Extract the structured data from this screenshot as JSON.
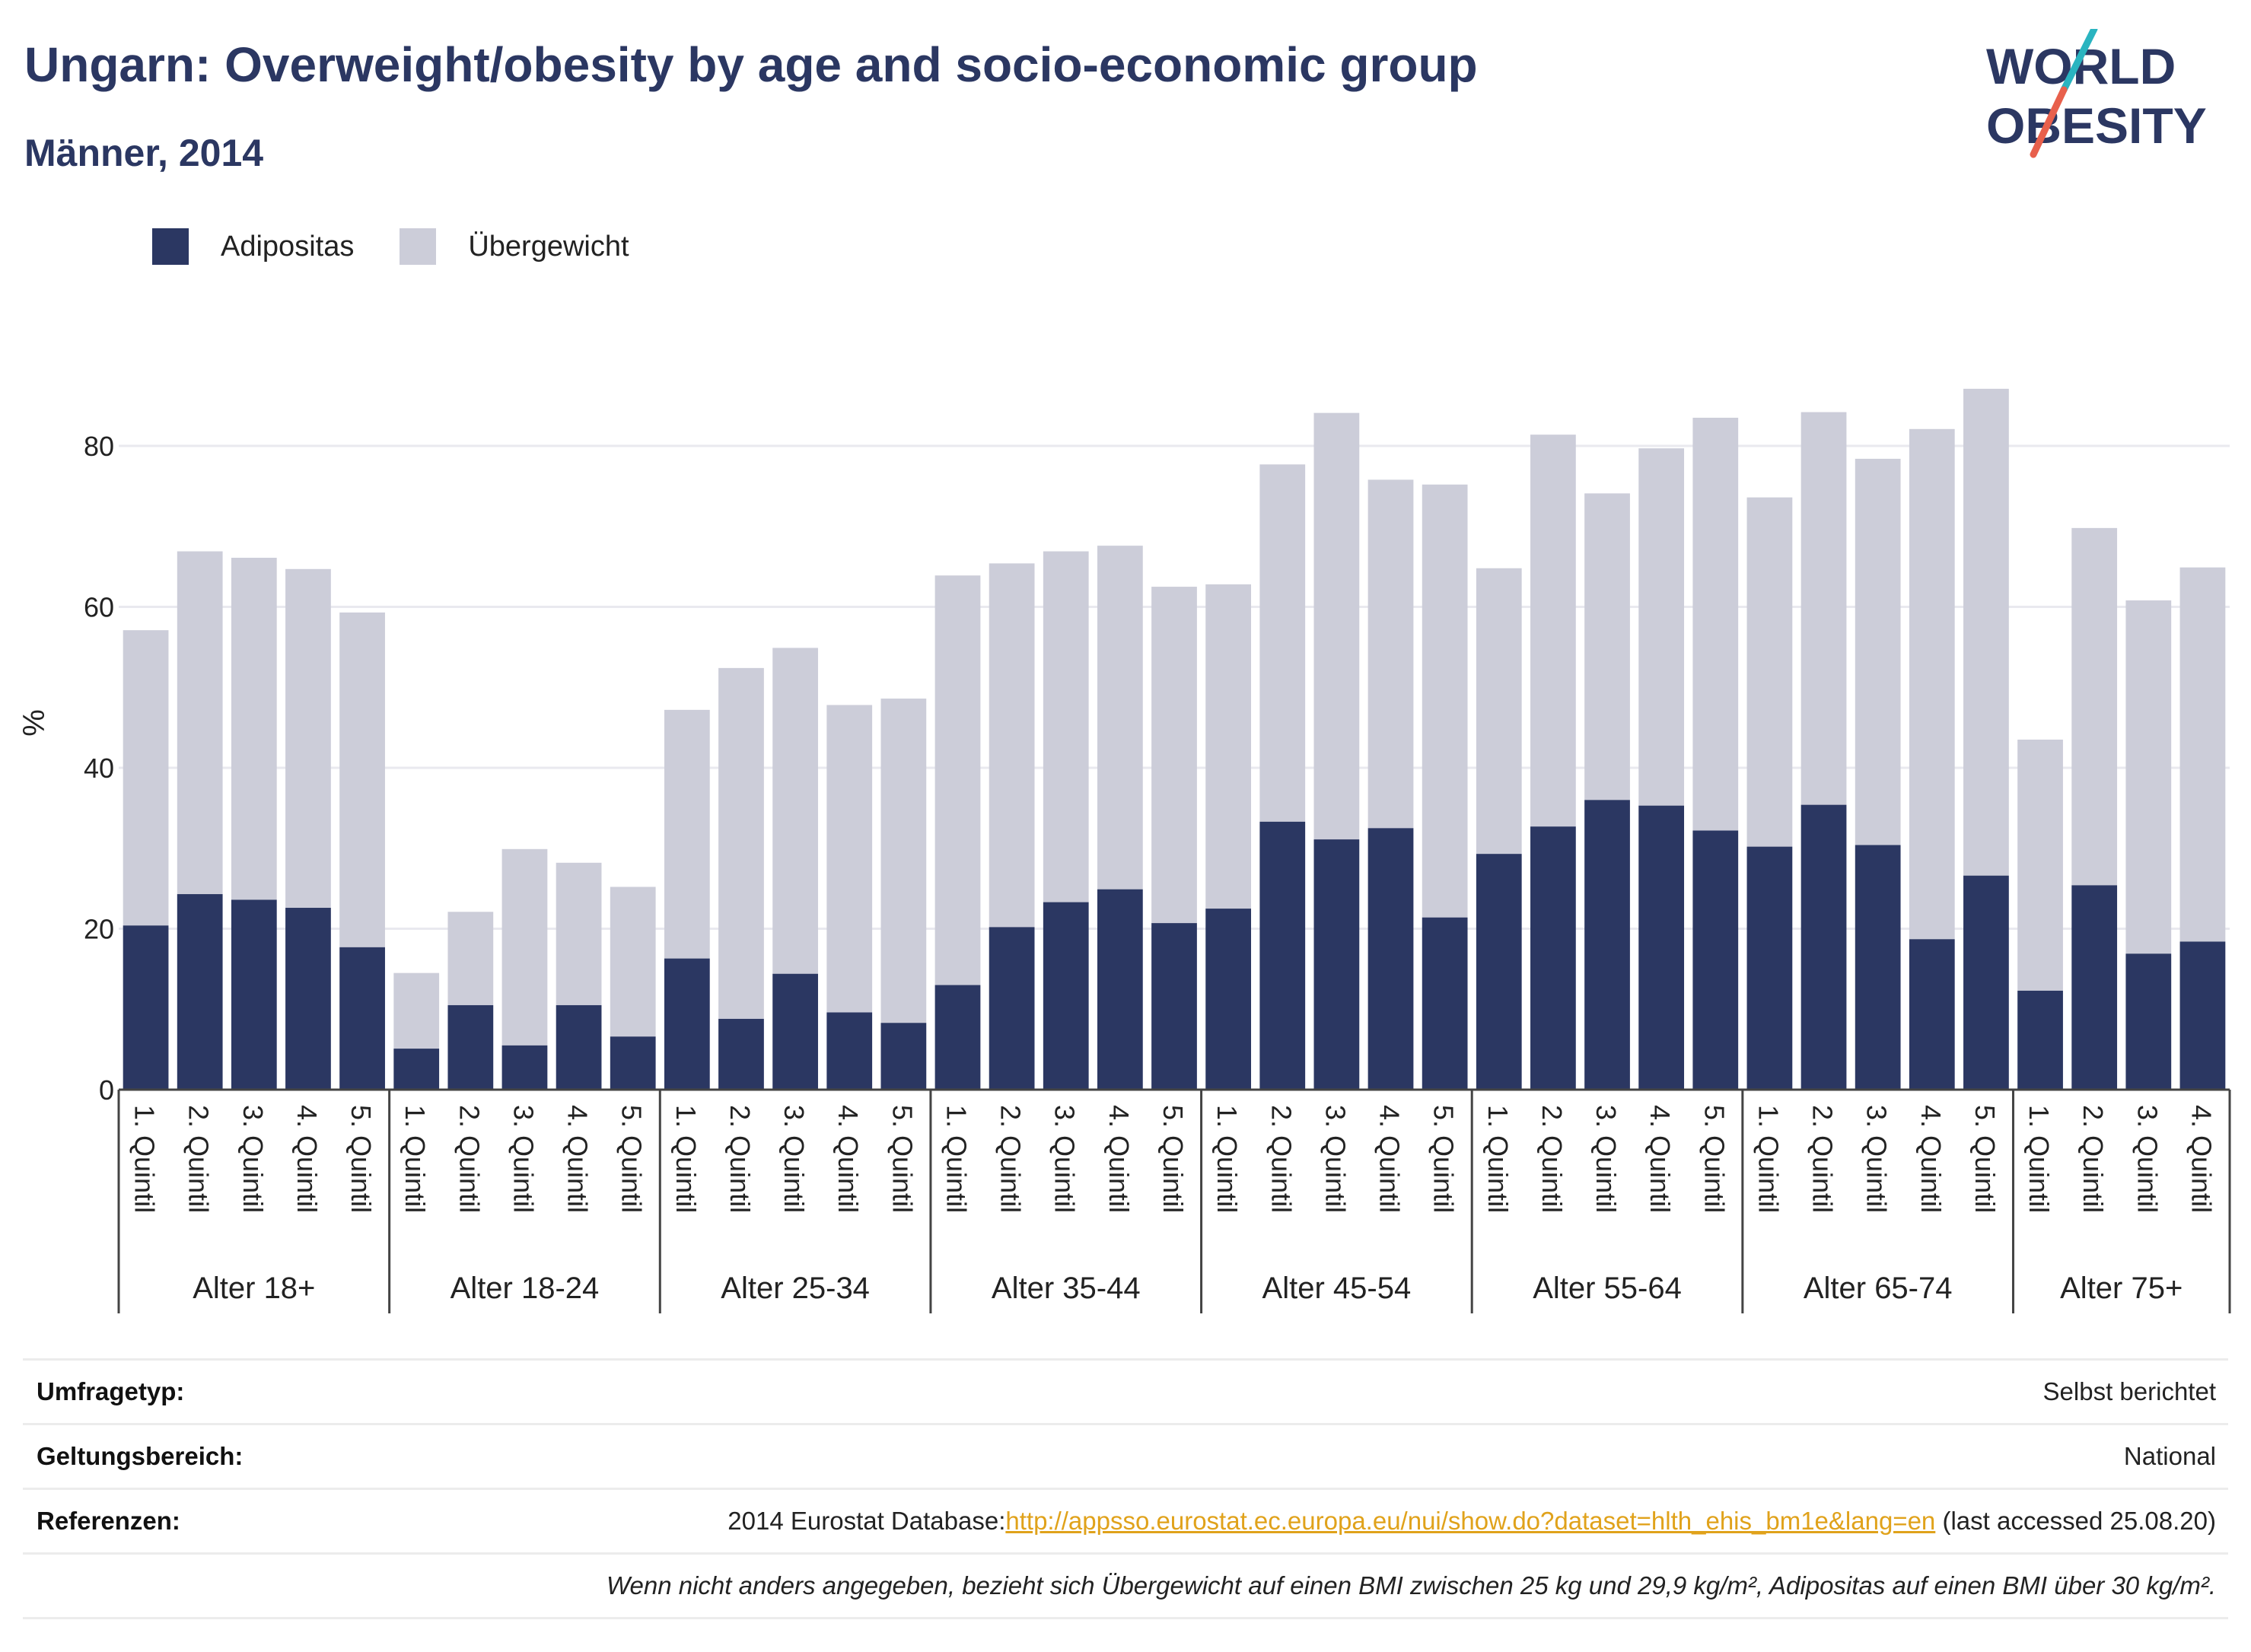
{
  "header": {
    "title": "Ungarn: Overweight/obesity by age and socio-economic group",
    "subtitle": "Männer, 2014"
  },
  "logo": {
    "line1": "WORLD",
    "line2": "OBESITY",
    "text_color": "#2b3762",
    "slash_color_top": "#2ab4c0",
    "slash_color_bottom": "#e8604c"
  },
  "legend": [
    {
      "label": "Adipositas",
      "color": "#2b3762"
    },
    {
      "label": "Übergewicht",
      "color": "#cccdd9"
    }
  ],
  "chart_data": {
    "type": "bar",
    "stacked": true,
    "ylabel": "%",
    "ylim": [
      0,
      90
    ],
    "yticks": [
      0,
      20,
      40,
      60,
      80
    ],
    "grid": true,
    "legend_position": "top-left",
    "groups": [
      {
        "label": "Alter 18+",
        "categories": [
          "1. Quintil",
          "2. Quintil",
          "3. Quintil",
          "4. Quintil",
          "5. Quintil"
        ]
      },
      {
        "label": "Alter 18-24",
        "categories": [
          "1. Quintil",
          "2. Quintil",
          "3. Quintil",
          "4. Quintil",
          "5. Quintil"
        ]
      },
      {
        "label": "Alter 25-34",
        "categories": [
          "1. Quintil",
          "2. Quintil",
          "3. Quintil",
          "4. Quintil",
          "5. Quintil"
        ]
      },
      {
        "label": "Alter 35-44",
        "categories": [
          "1. Quintil",
          "2. Quintil",
          "3. Quintil",
          "4. Quintil",
          "5. Quintil"
        ]
      },
      {
        "label": "Alter 45-54",
        "categories": [
          "1. Quintil",
          "2. Quintil",
          "3. Quintil",
          "4. Quintil",
          "5. Quintil"
        ]
      },
      {
        "label": "Alter 55-64",
        "categories": [
          "1. Quintil",
          "2. Quintil",
          "3. Quintil",
          "4. Quintil",
          "5. Quintil"
        ]
      },
      {
        "label": "Alter 65-74",
        "categories": [
          "1. Quintil",
          "2. Quintil",
          "3. Quintil",
          "4. Quintil",
          "5. Quintil"
        ]
      },
      {
        "label": "Alter 75+",
        "categories": [
          "1. Quintil",
          "2. Quintil",
          "3. Quintil",
          "4. Quintil"
        ]
      }
    ],
    "series": [
      {
        "name": "Adipositas",
        "color": "#2b3762",
        "values": [
          20.4,
          24.3,
          23.6,
          22.6,
          17.7,
          5.1,
          10.5,
          5.5,
          10.5,
          6.6,
          16.3,
          8.8,
          14.4,
          9.6,
          8.3,
          13.0,
          20.2,
          23.3,
          24.9,
          20.7,
          22.5,
          33.3,
          31.1,
          32.5,
          21.4,
          29.3,
          32.7,
          36.0,
          35.3,
          32.2,
          30.2,
          35.4,
          30.4,
          18.7,
          26.6,
          12.3,
          25.4,
          16.9,
          18.4
        ]
      },
      {
        "name": "Übergewicht",
        "color": "#cccdd9",
        "values": [
          36.7,
          42.6,
          42.5,
          42.1,
          41.6,
          9.4,
          11.6,
          24.4,
          17.7,
          18.6,
          30.9,
          43.6,
          40.5,
          38.2,
          40.3,
          50.9,
          45.2,
          43.6,
          42.7,
          41.8,
          40.3,
          44.4,
          53.0,
          43.3,
          53.8,
          35.5,
          48.7,
          38.1,
          44.4,
          51.3,
          43.4,
          48.8,
          48.0,
          63.4,
          60.5,
          31.2,
          44.4,
          43.9,
          46.5
        ]
      }
    ]
  },
  "info": {
    "survey_type_label": "Umfragetyp:",
    "survey_type_value": "Selbst berichtet",
    "coverage_label": "Geltungsbereich:",
    "coverage_value": "National",
    "references_label": "Referenzen:",
    "references_prefix": "2014 Eurostat Database:",
    "references_link": "http://appsso.eurostat.ec.europa.eu/nui/show.do?dataset=hlth_ehis_bm1e&lang=en",
    "references_suffix": " (last accessed 25.08.20)",
    "note": "Wenn nicht anders angegeben, bezieht sich Übergewicht auf einen BMI zwischen 25 kg und 29,9 kg/m², Adipositas auf einen BMI über 30 kg/m²."
  }
}
